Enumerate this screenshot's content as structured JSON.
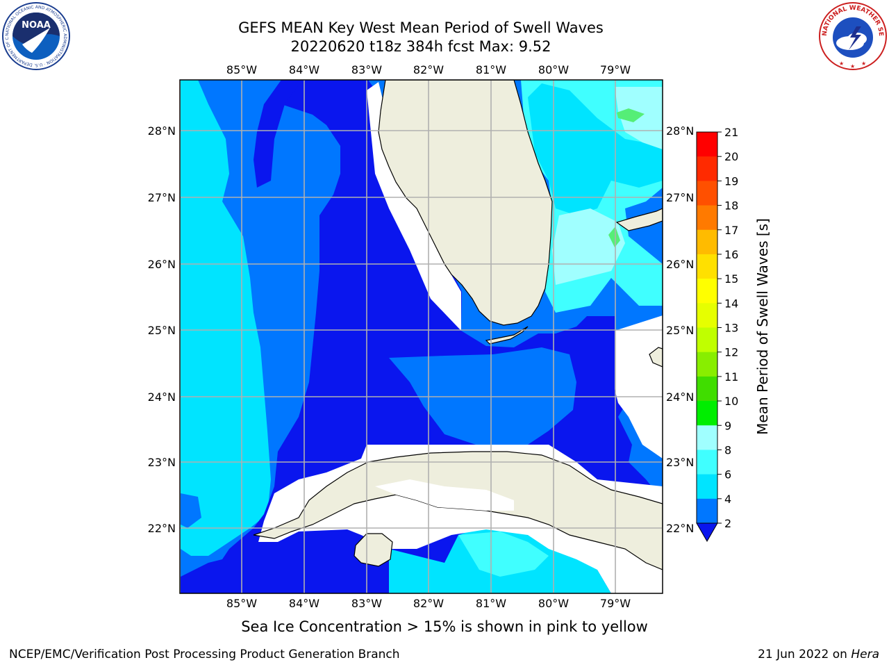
{
  "title": {
    "line1": "GEFS MEAN Key West Mean Period of Swell Waves",
    "line2": "20220620 t18z 384h fcst   Max: 9.52"
  },
  "map": {
    "lon_labels": [
      "85°W",
      "84°W",
      "83°W",
      "82°W",
      "81°W",
      "80°W",
      "79°W"
    ],
    "lat_labels": [
      "28°N",
      "27°N",
      "26°N",
      "25°N",
      "24°N",
      "23°N",
      "22°N"
    ],
    "ocean_colors": {
      "level_2_4": "#0077ff",
      "level_below_2": "#0a16ee",
      "level_4_6": "#00e4ff",
      "level_6_8": "#40ffff",
      "level_8_9": "#a0ffff",
      "level_9_10": "#55ee77"
    },
    "land_color": "#eeeedd",
    "grid_color": "#b0b0b0"
  },
  "colorbar": {
    "label": "Mean Period of Swell Waves [s]",
    "ticks": [
      "21",
      "20",
      "19",
      "18",
      "17",
      "16",
      "15",
      "14",
      "13",
      "12",
      "11",
      "10",
      "9",
      "8",
      "6",
      "4",
      "2"
    ],
    "colors": [
      "#ff0000",
      "#ff2a00",
      "#ff5000",
      "#ff7a00",
      "#ff9800",
      "#ffbb00",
      "#ffe000",
      "#ffff00",
      "#e6ff00",
      "#c0ff00",
      "#88ee00",
      "#40dd00",
      "#00ee00",
      "#55ee77",
      "#a0ffff",
      "#40ffff",
      "#00e4ff",
      "#0077ff"
    ],
    "extend_color": "#0a16ee"
  },
  "caption": "Sea Ice Concentration > 15% is shown in pink to yellow",
  "footer": {
    "left": "NCEP/EMC/Verification Post Processing Product Generation Branch",
    "date": "21 Jun 2022 on ",
    "host": "Hera"
  },
  "logos": {
    "noaa_text": "NOAA",
    "noaa_ring": "NATIONAL OCEANIC AND ATMOSPHERIC ADMINISTRATION · U.S. DEPARTMENT OF COMMERCE",
    "nws_ring": "NATIONAL WEATHER SERVICE"
  }
}
